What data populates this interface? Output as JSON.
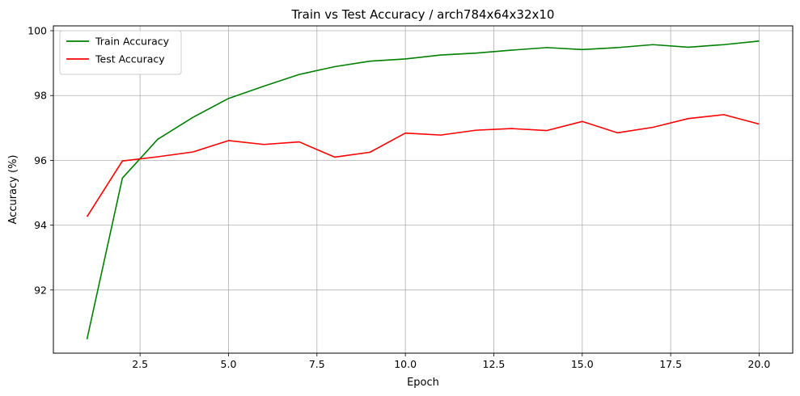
{
  "chart_data": {
    "type": "line",
    "title": "Train vs Test Accuracy / arch784x64x32x10",
    "xlabel": "Epoch",
    "ylabel": "Accuracy (%)",
    "xlim": [
      0.05,
      20.95
    ],
    "ylim": [
      90.05,
      100.15
    ],
    "xticks": [
      2.5,
      5.0,
      7.5,
      10.0,
      12.5,
      15.0,
      17.5,
      20.0
    ],
    "xtick_labels": [
      "2.5",
      "5.0",
      "7.5",
      "10.0",
      "12.5",
      "15.0",
      "17.5",
      "20.0"
    ],
    "yticks": [
      92,
      94,
      96,
      98,
      100
    ],
    "ytick_labels": [
      "92",
      "94",
      "96",
      "98",
      "100"
    ],
    "grid": true,
    "legend_position": "upper-left",
    "x": [
      1,
      2,
      3,
      4,
      5,
      6,
      7,
      8,
      9,
      10,
      11,
      12,
      13,
      14,
      15,
      16,
      17,
      18,
      19,
      20
    ],
    "series": [
      {
        "name": "Train Accuracy",
        "color": "#008000",
        "values": [
          90.48,
          95.45,
          96.65,
          97.33,
          97.91,
          98.29,
          98.65,
          98.89,
          99.06,
          99.13,
          99.25,
          99.31,
          99.4,
          99.48,
          99.42,
          99.48,
          99.57,
          99.49,
          99.57,
          99.68
        ]
      },
      {
        "name": "Test Accuracy",
        "color": "#ff0000",
        "values": [
          94.26,
          95.98,
          96.11,
          96.26,
          96.61,
          96.49,
          96.57,
          96.1,
          96.25,
          96.84,
          96.78,
          96.93,
          96.98,
          96.92,
          97.2,
          96.85,
          97.02,
          97.29,
          97.41,
          97.12
        ]
      }
    ]
  }
}
